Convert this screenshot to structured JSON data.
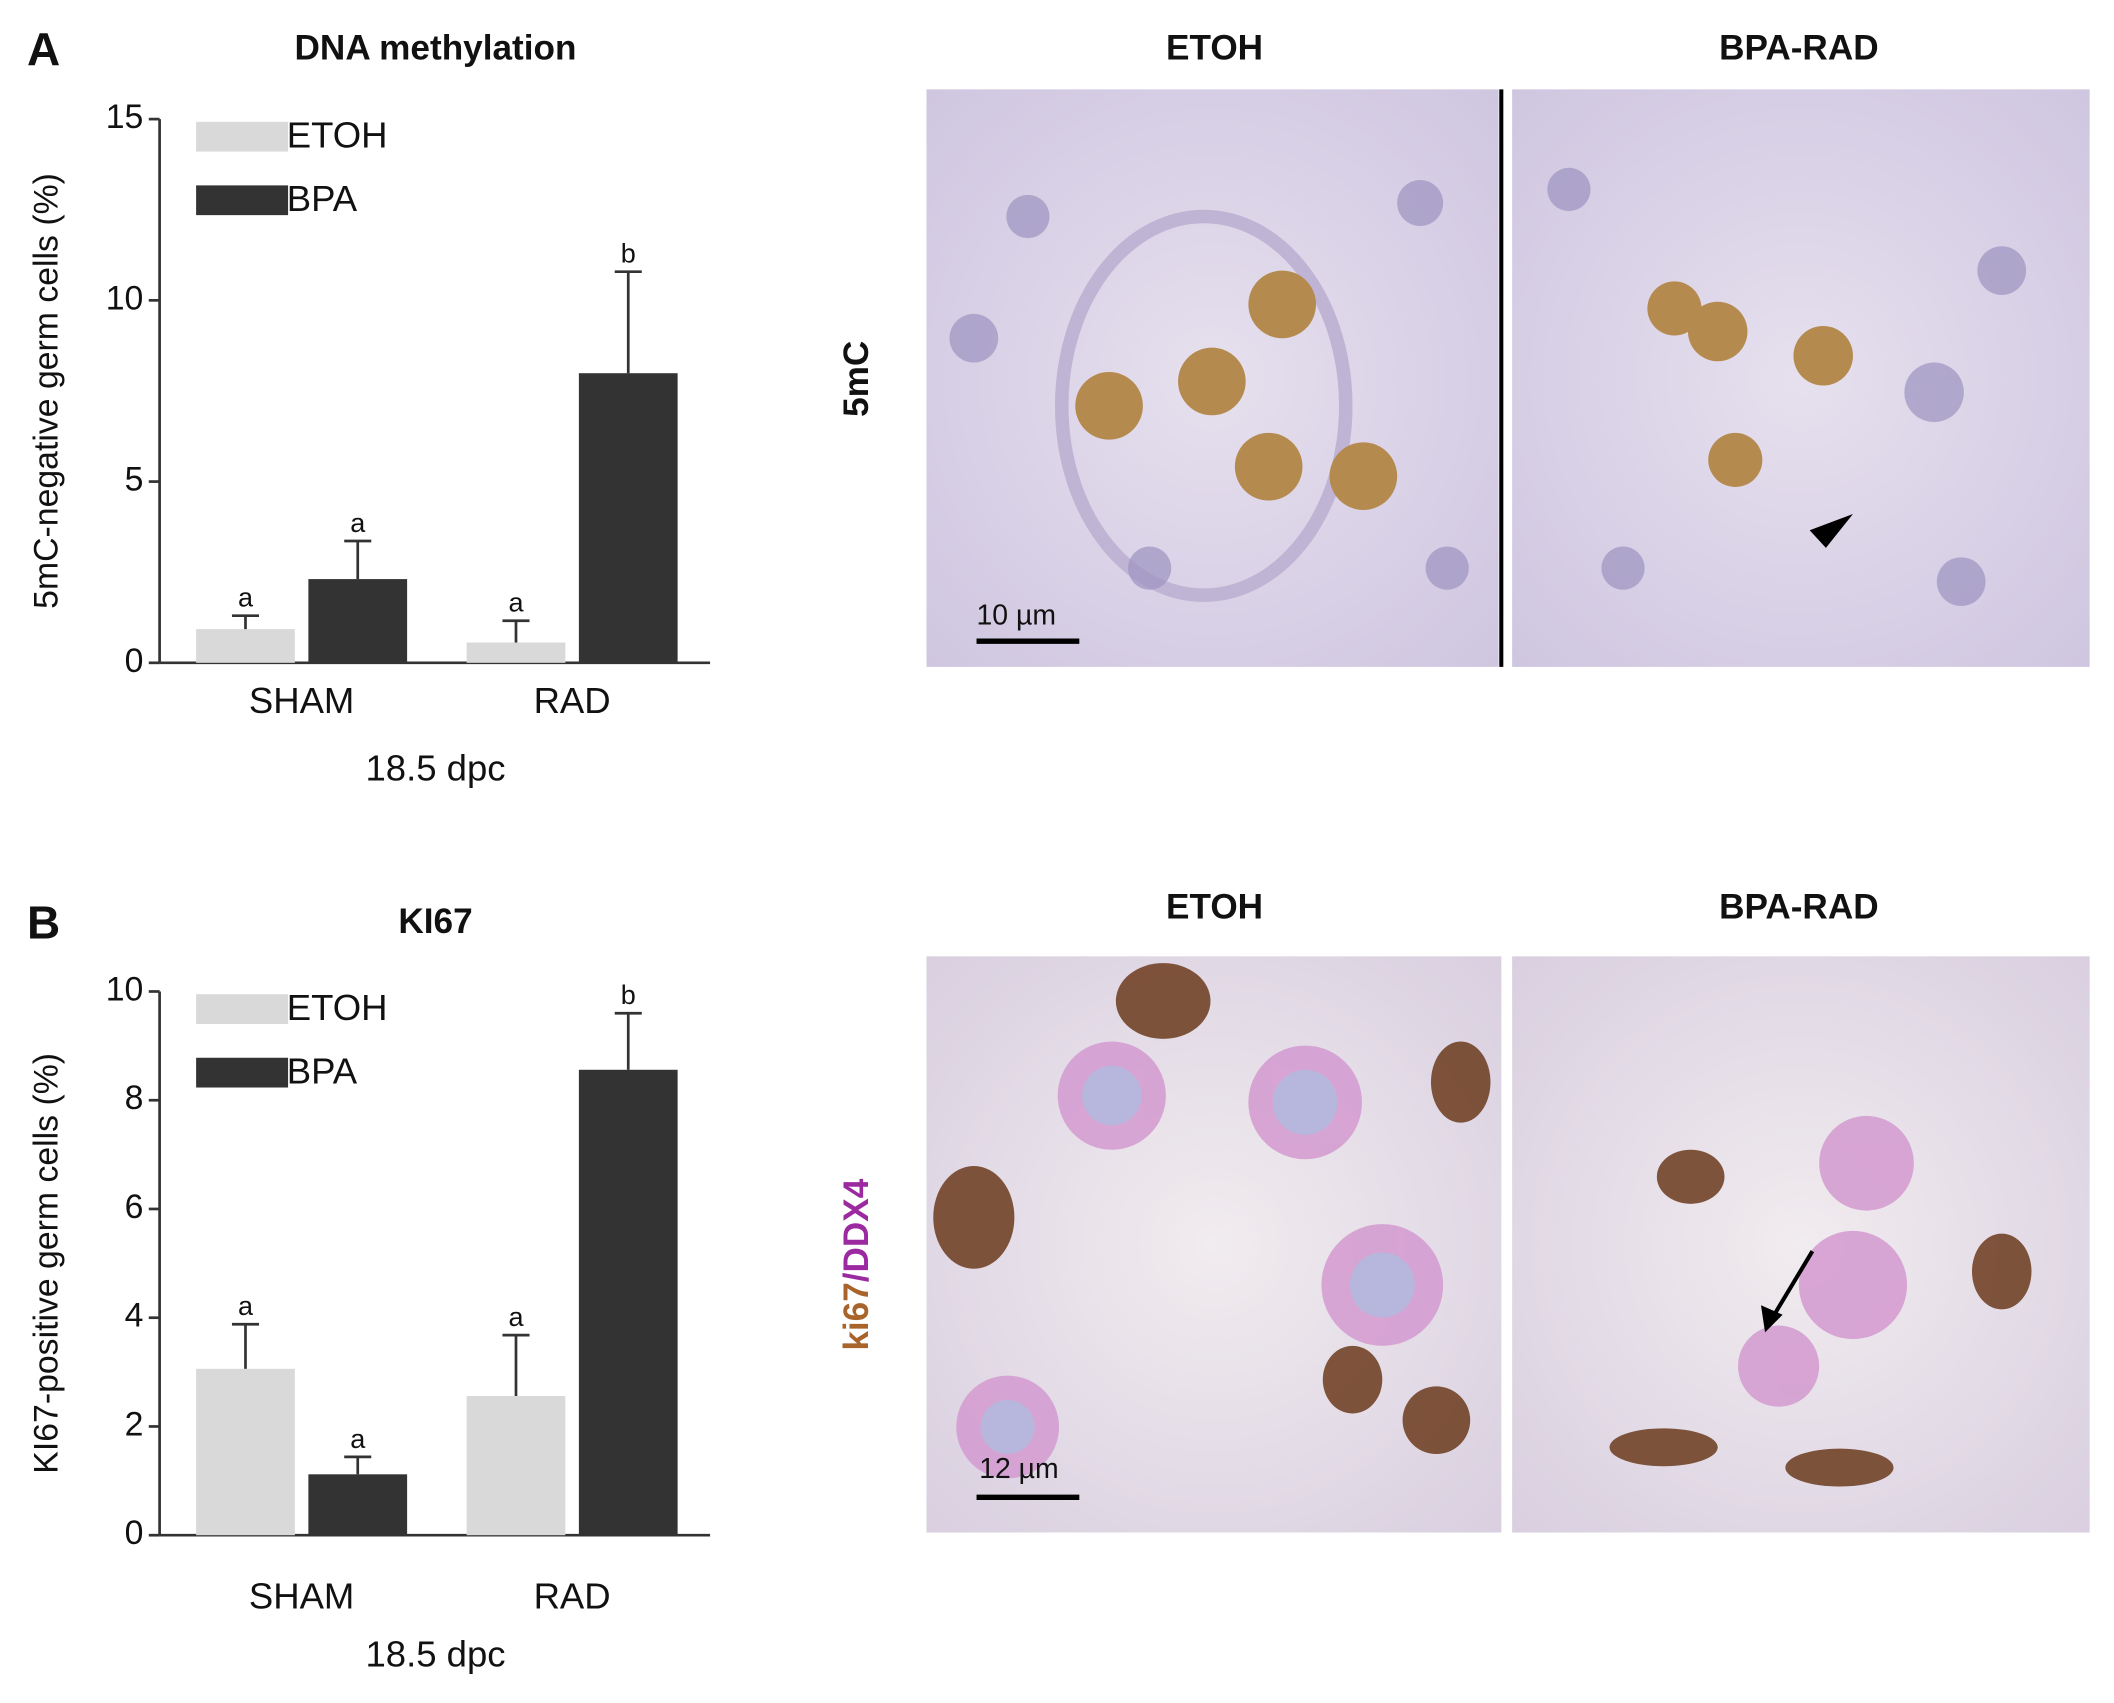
{
  "chart_data": [
    {
      "type": "bar",
      "panel": "A",
      "title": "DNA methylation",
      "y_label": "5mC-negative germ cells (%)",
      "x_label": "18.5 dpc",
      "categories": [
        "SHAM",
        "RAD"
      ],
      "series": [
        {
          "name": "ETOH",
          "color": "#d9d9d9",
          "values": [
            0.93,
            0.56
          ],
          "errors": [
            0.37,
            0.6
          ],
          "labels": [
            "a",
            "a"
          ]
        },
        {
          "name": "BPA",
          "color": "#333333",
          "values": [
            2.31,
            7.99
          ],
          "errors": [
            1.05,
            2.8
          ],
          "labels": [
            "a",
            "b"
          ]
        }
      ],
      "ylim": [
        0,
        15
      ],
      "yticks": [
        0,
        5,
        10,
        15
      ],
      "legend": "upper left"
    },
    {
      "type": "bar",
      "panel": "B",
      "title": "KI67",
      "y_label": "KI67-positive germ cells (%)",
      "x_label": "18.5 dpc",
      "categories": [
        "SHAM",
        "RAD"
      ],
      "series": [
        {
          "name": "ETOH",
          "color": "#d9d9d9",
          "values": [
            3.06,
            2.56
          ],
          "errors": [
            0.82,
            1.12
          ],
          "labels": [
            "a",
            "a"
          ]
        },
        {
          "name": "BPA",
          "color": "#333333",
          "values": [
            1.12,
            8.56
          ],
          "errors": [
            0.32,
            1.04
          ],
          "labels": [
            "a",
            "b"
          ]
        }
      ],
      "ylim": [
        0,
        10
      ],
      "yticks": [
        0,
        2,
        4,
        6,
        8,
        10
      ],
      "legend": "upper left"
    }
  ],
  "micrographs": [
    {
      "columns": [
        "ETOH",
        "BPA-RAD"
      ],
      "stain": [
        {
          "text": "5mC",
          "color": "#b8732e"
        }
      ],
      "scale_bar": "10 µm"
    },
    {
      "columns": [
        "ETOH",
        "BPA-RAD"
      ],
      "stain": [
        {
          "text": "ki67",
          "color": "#a8642a"
        },
        {
          "text": "/DDX4",
          "color": "#9b2aa0"
        }
      ],
      "scale_bar": "12 µm"
    }
  ]
}
